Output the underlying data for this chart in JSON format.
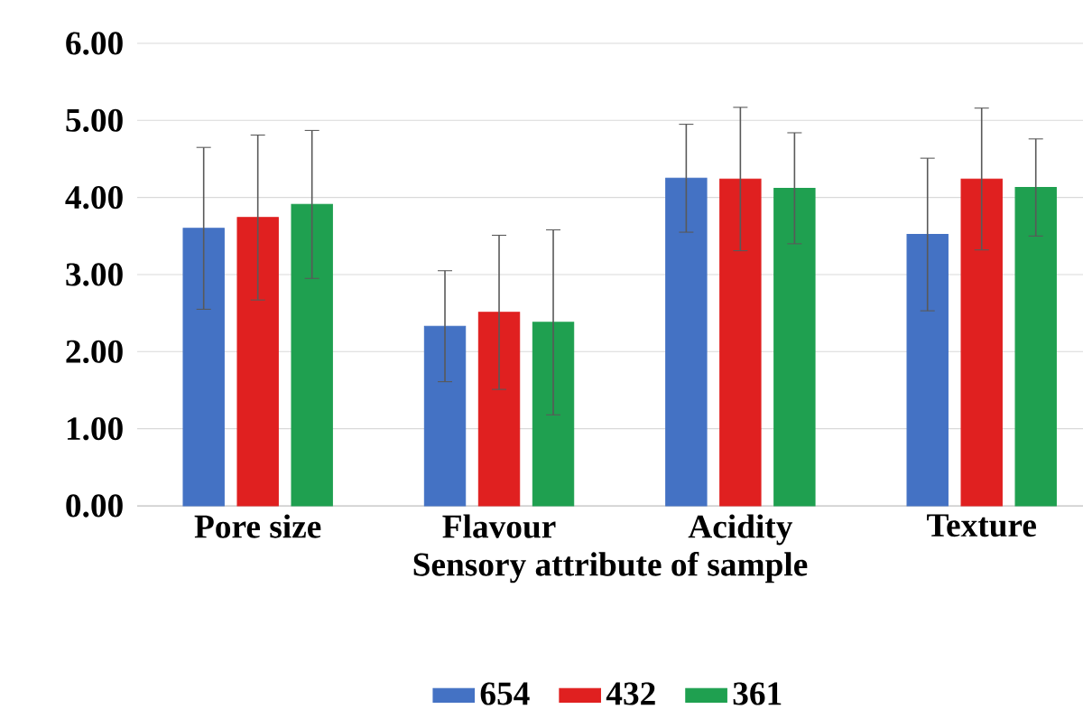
{
  "chart_data": {
    "type": "bar",
    "xlabel": "Sensory attribute of sample",
    "categories": [
      "Pore size",
      "Flavour",
      "Acidity",
      "Texture"
    ],
    "series": [
      {
        "name": "654",
        "color": "#4472c4",
        "values": [
          3.6,
          2.33,
          4.25,
          3.52
        ],
        "errors": [
          1.05,
          0.72,
          0.7,
          0.99
        ]
      },
      {
        "name": "432",
        "color": "#e02020",
        "values": [
          3.74,
          2.51,
          4.24,
          4.24
        ],
        "errors": [
          1.07,
          1.0,
          0.93,
          0.92
        ]
      },
      {
        "name": "361",
        "color": "#1fa050",
        "values": [
          3.91,
          2.38,
          4.12,
          4.13
        ],
        "errors": [
          0.96,
          1.2,
          0.72,
          0.63
        ]
      }
    ],
    "ylim": [
      0,
      6
    ],
    "yticks": [
      {
        "value": 0,
        "label": "0.00"
      },
      {
        "value": 1,
        "label": "1.00"
      },
      {
        "value": 2,
        "label": "2.00"
      },
      {
        "value": 3,
        "label": "3.00"
      },
      {
        "value": 4,
        "label": "4.00"
      },
      {
        "value": 5,
        "label": "5.00"
      },
      {
        "value": 6,
        "label": "6.00"
      }
    ],
    "grid": "y",
    "legend": "bottom"
  }
}
